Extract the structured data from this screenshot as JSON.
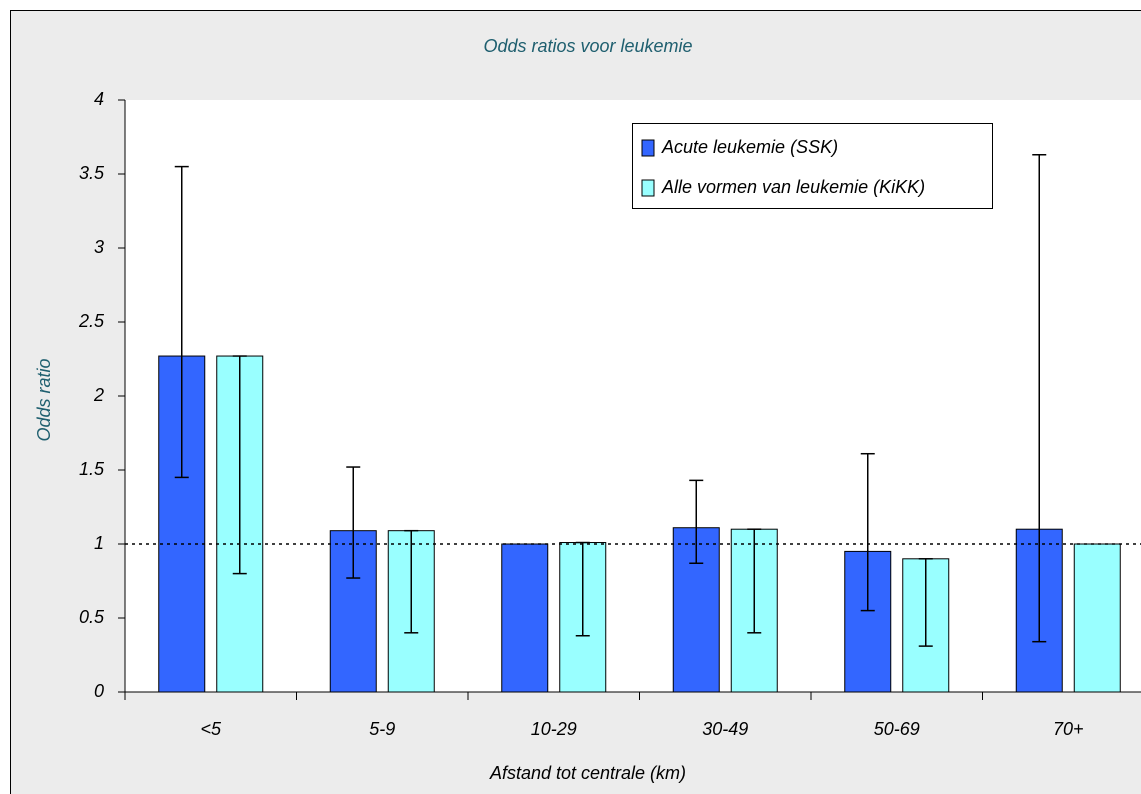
{
  "chart_data": {
    "type": "bar",
    "title": "Odds ratios voor leukemie",
    "x_label": "Afstand tot centrale (km)",
    "y_label": "Odds ratio",
    "categories": [
      "<5",
      "5-9",
      "10-29",
      "30-49",
      "50-69",
      "70+"
    ],
    "series": [
      {
        "name": "Acute leukemie (SSK)",
        "color": "#3366ff",
        "values": [
          2.27,
          1.09,
          1.0,
          1.11,
          0.95,
          1.1
        ],
        "lower": [
          1.45,
          0.77,
          null,
          0.87,
          0.55,
          0.34
        ],
        "upper": [
          3.55,
          1.52,
          null,
          1.43,
          1.61,
          3.63
        ]
      },
      {
        "name": "Alle vormen van leukemie (KiKK)",
        "color": "#99ffff",
        "values": [
          2.27,
          1.09,
          1.01,
          1.1,
          0.9,
          1.0
        ],
        "lower": [
          0.8,
          0.4,
          0.38,
          0.4,
          0.31,
          null
        ],
        "upper": [
          2.27,
          1.09,
          1.01,
          1.1,
          0.9,
          null
        ]
      }
    ],
    "ylim": [
      0,
      4
    ],
    "yticks": [
      0,
      0.5,
      1,
      1.5,
      2,
      2.5,
      3,
      3.5,
      4
    ],
    "reference_line": 1
  }
}
